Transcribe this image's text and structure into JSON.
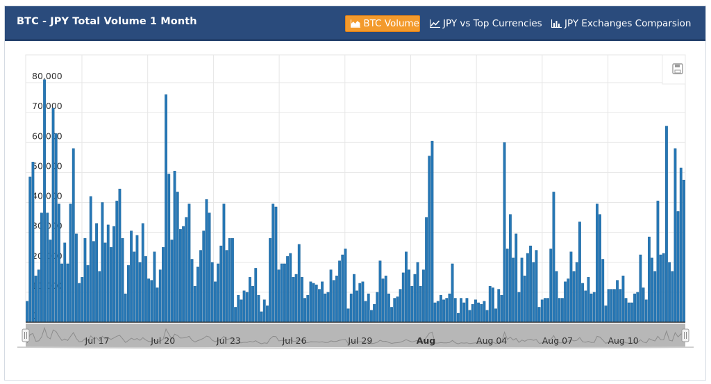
{
  "header": {
    "title": "BTC - JPY Total Volume 1 Month",
    "tabs": [
      {
        "label": "BTC Volume",
        "icon": "area-chart-icon",
        "active": true
      },
      {
        "label": "JPY vs Top Currencies",
        "icon": "line-chart-icon",
        "active": false
      },
      {
        "label": "JPY Exchanges Comparsion",
        "icon": "bar-chart-icon",
        "active": false
      }
    ]
  },
  "colors": {
    "header_bg": "#2a4b7c",
    "active_tab": "#f39a2c",
    "bar": "#2677b5",
    "bar_border": "#1b5e92",
    "navigator_bg": "#b7b7b7"
  },
  "chart_data": {
    "type": "bar",
    "title": "",
    "xlabel": "",
    "ylabel": "",
    "ylim": [
      0,
      80000
    ],
    "yticks": [
      "0",
      "10,000",
      "20,000",
      "30,000",
      "40,000",
      "50,000",
      "60,000",
      "70,000",
      "80,000"
    ],
    "xticks": [
      {
        "label": "Jul 17",
        "bold": false
      },
      {
        "label": "Jul 20",
        "bold": false
      },
      {
        "label": "Jul 23",
        "bold": false
      },
      {
        "label": "Jul 26",
        "bold": false
      },
      {
        "label": "Jul 29",
        "bold": false
      },
      {
        "label": "Aug",
        "bold": true
      },
      {
        "label": "Aug 04",
        "bold": false
      },
      {
        "label": "Aug 07",
        "bold": false
      },
      {
        "label": "Aug 10",
        "bold": false
      }
    ],
    "grid": true,
    "series": [
      {
        "values": [
          7000,
          48500,
          53500,
          15500,
          17500,
          36500,
          81000,
          36500,
          27500,
          71500,
          63000,
          39500,
          19500,
          26500,
          19500,
          39500,
          58000,
          29500,
          13000,
          15000,
          28000,
          19000,
          42000,
          27000,
          33000,
          17000,
          40000,
          26500,
          32500,
          25000,
          32000,
          40500,
          44500,
          28000,
          9500,
          19000,
          30500,
          23500,
          29000,
          20000,
          33000,
          22000,
          14500,
          14000,
          23500,
          11500,
          17500,
          25000,
          76000,
          49500,
          27500,
          50500,
          43500,
          31000,
          32000,
          35000,
          39500,
          21000,
          12000,
          18500,
          24000,
          30500,
          41000,
          36500,
          20000,
          13500,
          19500,
          25500,
          39500,
          24000,
          28000,
          28000,
          5000,
          9000,
          7500,
          10500,
          10000,
          15000,
          12000,
          18000,
          9000,
          3500,
          7500,
          5500,
          28000,
          39500,
          38500,
          17500,
          19500,
          19500,
          22000,
          23000,
          15000,
          16000,
          26000,
          15000,
          8000,
          9000,
          13500,
          13000,
          12500,
          11000,
          13500,
          9500,
          10000,
          17500,
          14000,
          15500,
          20500,
          22500,
          24500,
          4500,
          9500,
          16000,
          10500,
          13000,
          13500,
          7000,
          9500,
          4000,
          6000,
          10000,
          20500,
          14500,
          15500,
          9500,
          5000,
          8000,
          8500,
          11000,
          16500,
          23500,
          17500,
          12000,
          16000,
          20000,
          12000,
          17500,
          35000,
          55500,
          60500,
          6500,
          7000,
          9000,
          7500,
          8000,
          9500,
          19500,
          8000,
          3000,
          8000,
          6500,
          8000,
          4000,
          6000,
          7500,
          6500,
          6000,
          7000,
          4000,
          12000,
          11500,
          4500,
          11000,
          9000,
          60000,
          24500,
          36000,
          21500,
          29500,
          10000,
          21500,
          15500,
          23000,
          25500,
          20000,
          24000,
          5000,
          7500,
          8000,
          8000,
          24500,
          43500,
          17000,
          8000,
          8000,
          13500,
          14500,
          23500,
          17000,
          20000,
          33500,
          13000,
          10500,
          15000,
          9500,
          10000,
          39500,
          36000,
          21000,
          5500,
          11000,
          11000,
          11000,
          14000,
          11000,
          15500,
          8000,
          6500,
          6500,
          9500,
          10000,
          22500,
          11500,
          7500,
          28500,
          21500,
          17000,
          40500,
          22500,
          23000,
          65500,
          20000,
          17000,
          58000,
          37000,
          51500,
          47500
        ]
      }
    ]
  }
}
